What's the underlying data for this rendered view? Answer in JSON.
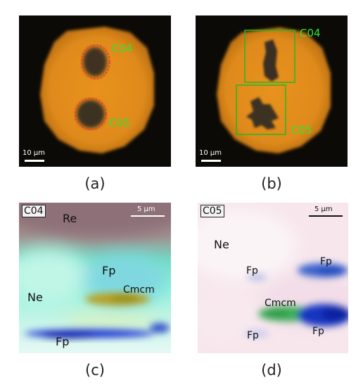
{
  "figure": {
    "panels": [
      {
        "id": "a",
        "caption": "(a)",
        "scale_bar": "10 μm",
        "labels": [
          "C04",
          "C05"
        ]
      },
      {
        "id": "b",
        "caption": "(b)",
        "scale_bar": "10 μm",
        "labels": [
          "C04",
          "C05"
        ]
      },
      {
        "id": "c",
        "caption": "(c)",
        "tag": "C04",
        "scale_bar": "5 μm",
        "labels": {
          "re": "Re",
          "fp_top": "Fp",
          "cmcm": "Cmcm",
          "ne": "Ne",
          "fp_bottom": "Fp"
        }
      },
      {
        "id": "d",
        "caption": "(d)",
        "tag": "C05",
        "scale_bar": "5 μm",
        "labels": {
          "ne": "Ne",
          "fp_left": "Fp",
          "fp_right": "Fp",
          "cmcm": "Cmcm",
          "fp_bottom": "Fp"
        }
      }
    ]
  },
  "colors": {
    "sample_orange": "#e08c1c",
    "background_black": "#0b0a06",
    "annotation_green": "#2ee52e",
    "marker_red": "#ff2a2a"
  }
}
